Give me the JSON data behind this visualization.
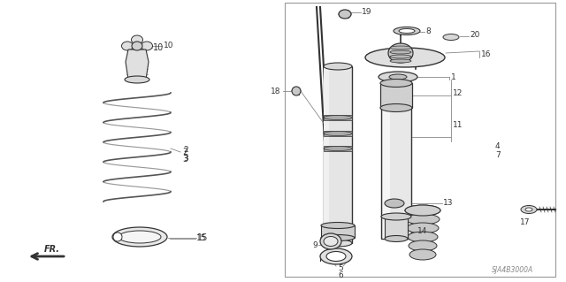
{
  "background_color": "#ffffff",
  "border_color": "#aaaaaa",
  "watermark": "SJA4B3000A",
  "line_color": "#333333",
  "gray1": "#888888",
  "gray2": "#cccccc",
  "gray3": "#555555"
}
